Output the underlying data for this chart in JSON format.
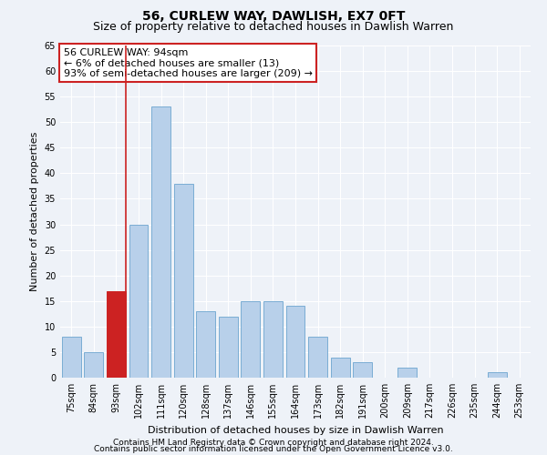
{
  "title": "56, CURLEW WAY, DAWLISH, EX7 0FT",
  "subtitle": "Size of property relative to detached houses in Dawlish Warren",
  "xlabel": "Distribution of detached houses by size in Dawlish Warren",
  "ylabel": "Number of detached properties",
  "categories": [
    "75sqm",
    "84sqm",
    "93sqm",
    "102sqm",
    "111sqm",
    "120sqm",
    "128sqm",
    "137sqm",
    "146sqm",
    "155sqm",
    "164sqm",
    "173sqm",
    "182sqm",
    "191sqm",
    "200sqm",
    "209sqm",
    "217sqm",
    "226sqm",
    "235sqm",
    "244sqm",
    "253sqm"
  ],
  "values": [
    8,
    5,
    17,
    30,
    53,
    38,
    13,
    12,
    15,
    15,
    14,
    8,
    4,
    3,
    0,
    2,
    0,
    0,
    0,
    1,
    0
  ],
  "bar_color": "#b8d0ea",
  "bar_edge_color": "#7aadd4",
  "highlight_bar_index": 2,
  "highlight_color": "#cc2222",
  "vline_color": "#cc2222",
  "annotation_text": "56 CURLEW WAY: 94sqm\n← 6% of detached houses are smaller (13)\n93% of semi-detached houses are larger (209) →",
  "annotation_box_color": "#ffffff",
  "annotation_box_edge": "#cc2222",
  "ylim": [
    0,
    65
  ],
  "yticks": [
    0,
    5,
    10,
    15,
    20,
    25,
    30,
    35,
    40,
    45,
    50,
    55,
    60,
    65
  ],
  "footer1": "Contains HM Land Registry data © Crown copyright and database right 2024.",
  "footer2": "Contains public sector information licensed under the Open Government Licence v3.0.",
  "background_color": "#eef2f8",
  "grid_color": "#ffffff",
  "title_fontsize": 10,
  "subtitle_fontsize": 9,
  "axis_label_fontsize": 8,
  "tick_fontsize": 7,
  "annotation_fontsize": 8,
  "footer_fontsize": 6.5
}
